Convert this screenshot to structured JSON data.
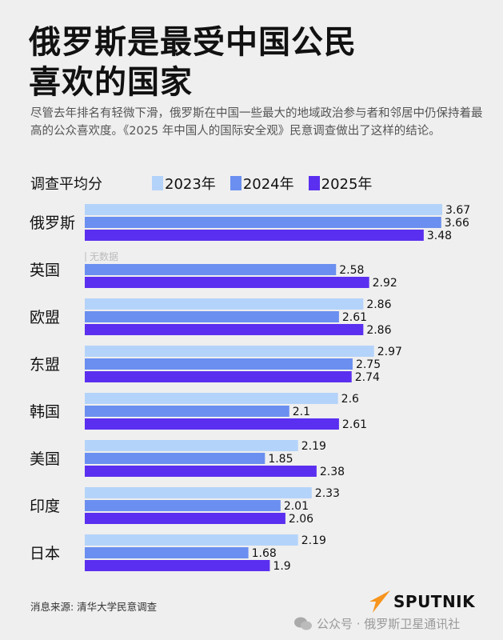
{
  "title_lines": [
    "俄罗斯是最受中国公民",
    "喜欢的国家"
  ],
  "subtitle": "尽管去年排名有轻微下滑，俄罗斯在中国一些最大的地域政治参与者和邻居中仍保持着最高的公众喜欢度。《2025 年中国人的国际安全观》民意调查做出了这样的结论。",
  "source": "消息来源: 清华大学民意调查",
  "logo_text": "SPUTNIK",
  "wechat_text": "公众号 · 俄罗斯卫星通讯社",
  "chart_data": {
    "type": "bar",
    "orientation": "horizontal",
    "ylabel": "调查平均分",
    "categories": [
      "俄罗斯",
      "英国",
      "欧盟",
      "东盟",
      "韩国",
      "美国",
      "印度",
      "日本"
    ],
    "series": [
      {
        "name": "2023年",
        "color": "#b4d3fa",
        "values": [
          3.67,
          null,
          2.86,
          2.97,
          2.6,
          2.19,
          2.33,
          2.19
        ]
      },
      {
        "name": "2024年",
        "color": "#6a8ff0",
        "values": [
          3.66,
          2.58,
          2.61,
          2.75,
          2.1,
          1.85,
          2.01,
          1.68
        ]
      },
      {
        "name": "2025年",
        "color": "#5b2ff0",
        "values": [
          3.48,
          2.92,
          2.86,
          2.74,
          2.61,
          2.38,
          2.06,
          1.9
        ]
      }
    ],
    "value_labels": [
      [
        "3.67",
        "3.66",
        "3.48"
      ],
      [
        "无数据",
        "2.58",
        "2.92"
      ],
      [
        "2.86",
        "2.61",
        "2.86"
      ],
      [
        "2.97",
        "2.75",
        "2.74"
      ],
      [
        "2.6",
        "2.1",
        "2.61"
      ],
      [
        "2.19",
        "1.85",
        "2.38"
      ],
      [
        "2.33",
        "2.01",
        "2.06"
      ],
      [
        "2.19",
        "1.68",
        "1.9"
      ]
    ],
    "xlim": [
      0,
      3.67
    ],
    "grid": false,
    "legend_position": "top"
  }
}
